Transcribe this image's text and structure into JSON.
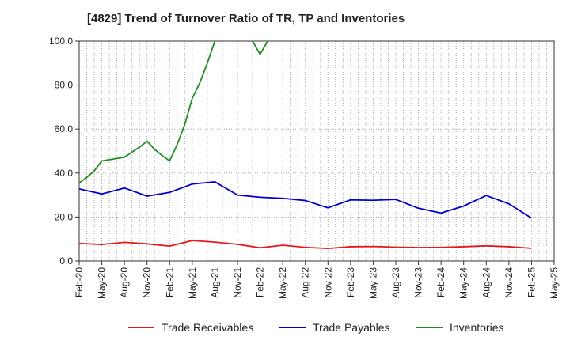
{
  "chart_data": {
    "type": "line",
    "title": "[4829]  Trend of Turnover Ratio of TR, TP and Inventories",
    "xlabel": "",
    "ylabel": "",
    "ylim": [
      0,
      100
    ],
    "yticks": [
      "0.0",
      "20.0",
      "40.0",
      "60.0",
      "80.0",
      "100.0"
    ],
    "xticks": [
      "Feb-20",
      "May-20",
      "Aug-20",
      "Nov-20",
      "Feb-21",
      "May-21",
      "Aug-21",
      "Nov-21",
      "Feb-22",
      "May-22",
      "Aug-22",
      "Nov-22",
      "Feb-23",
      "May-23",
      "Aug-23",
      "Nov-23",
      "Feb-24",
      "May-24",
      "Aug-24",
      "Nov-24",
      "Feb-25",
      "May-25"
    ],
    "x_range": [
      "Feb-20",
      "May-25"
    ],
    "grid": true,
    "legend_position": "bottom",
    "series": [
      {
        "name": "Trade Receivables",
        "color": "#e31a1c",
        "points": [
          [
            "Feb-20",
            8.0
          ],
          [
            "May-20",
            7.5
          ],
          [
            "Aug-20",
            8.5
          ],
          [
            "Nov-20",
            7.8
          ],
          [
            "Feb-21",
            6.8
          ],
          [
            "May-21",
            9.3
          ],
          [
            "Aug-21",
            8.6
          ],
          [
            "Nov-21",
            7.6
          ],
          [
            "Feb-22",
            6.0
          ],
          [
            "May-22",
            7.2
          ],
          [
            "Aug-22",
            6.2
          ],
          [
            "Nov-22",
            5.7
          ],
          [
            "Feb-23",
            6.5
          ],
          [
            "May-23",
            6.6
          ],
          [
            "Aug-23",
            6.3
          ],
          [
            "Nov-23",
            6.1
          ],
          [
            "Feb-24",
            6.2
          ],
          [
            "May-24",
            6.5
          ],
          [
            "Aug-24",
            6.9
          ],
          [
            "Nov-24",
            6.5
          ],
          [
            "Feb-25",
            5.8
          ]
        ]
      },
      {
        "name": "Trade Payables",
        "color": "#0000cc",
        "points": [
          [
            "Feb-20",
            32.8
          ],
          [
            "May-20",
            30.5
          ],
          [
            "Aug-20",
            33.2
          ],
          [
            "Nov-20",
            29.5
          ],
          [
            "Feb-21",
            31.2
          ],
          [
            "May-21",
            35.0
          ],
          [
            "Aug-21",
            36.0
          ],
          [
            "Nov-21",
            30.0
          ],
          [
            "Feb-22",
            29.0
          ],
          [
            "May-22",
            28.5
          ],
          [
            "Aug-22",
            27.5
          ],
          [
            "Nov-22",
            24.2
          ],
          [
            "Feb-23",
            27.8
          ],
          [
            "May-23",
            27.6
          ],
          [
            "Aug-23",
            28.0
          ],
          [
            "Nov-23",
            24.0
          ],
          [
            "Feb-24",
            21.8
          ],
          [
            "May-24",
            25.0
          ],
          [
            "Aug-24",
            29.8
          ],
          [
            "Nov-24",
            26.0
          ],
          [
            "Feb-25",
            19.5
          ]
        ]
      },
      {
        "name": "Inventories",
        "color": "#228b22",
        "points": [
          [
            "Feb-20",
            35.5
          ],
          [
            "Mar-20",
            38.0
          ],
          [
            "Apr-20",
            41.0
          ],
          [
            "May-20",
            45.5
          ],
          [
            "Aug-20",
            47.2
          ],
          [
            "Sep-20",
            49.5
          ],
          [
            "Oct-20",
            51.8
          ],
          [
            "Nov-20",
            54.5
          ],
          [
            "Dec-20",
            50.8
          ],
          [
            "Jan-21",
            48.0
          ],
          [
            "Feb-21",
            45.5
          ],
          [
            "Mar-21",
            53.0
          ],
          [
            "Apr-21",
            62.0
          ],
          [
            "May-21",
            74.0
          ],
          [
            "Jun-21",
            81.0
          ],
          [
            "Jul-21",
            90.0
          ],
          [
            "Aug-21",
            100.0
          ],
          [
            "Sep-21",
            null
          ],
          [
            "Oct-21",
            null
          ],
          [
            "Nov-21",
            null
          ],
          [
            "Dec-21",
            null
          ],
          [
            "Jan-22",
            100.0
          ],
          [
            "Feb-22",
            94.0
          ],
          [
            "Mar-22",
            100.0
          ]
        ]
      }
    ]
  }
}
